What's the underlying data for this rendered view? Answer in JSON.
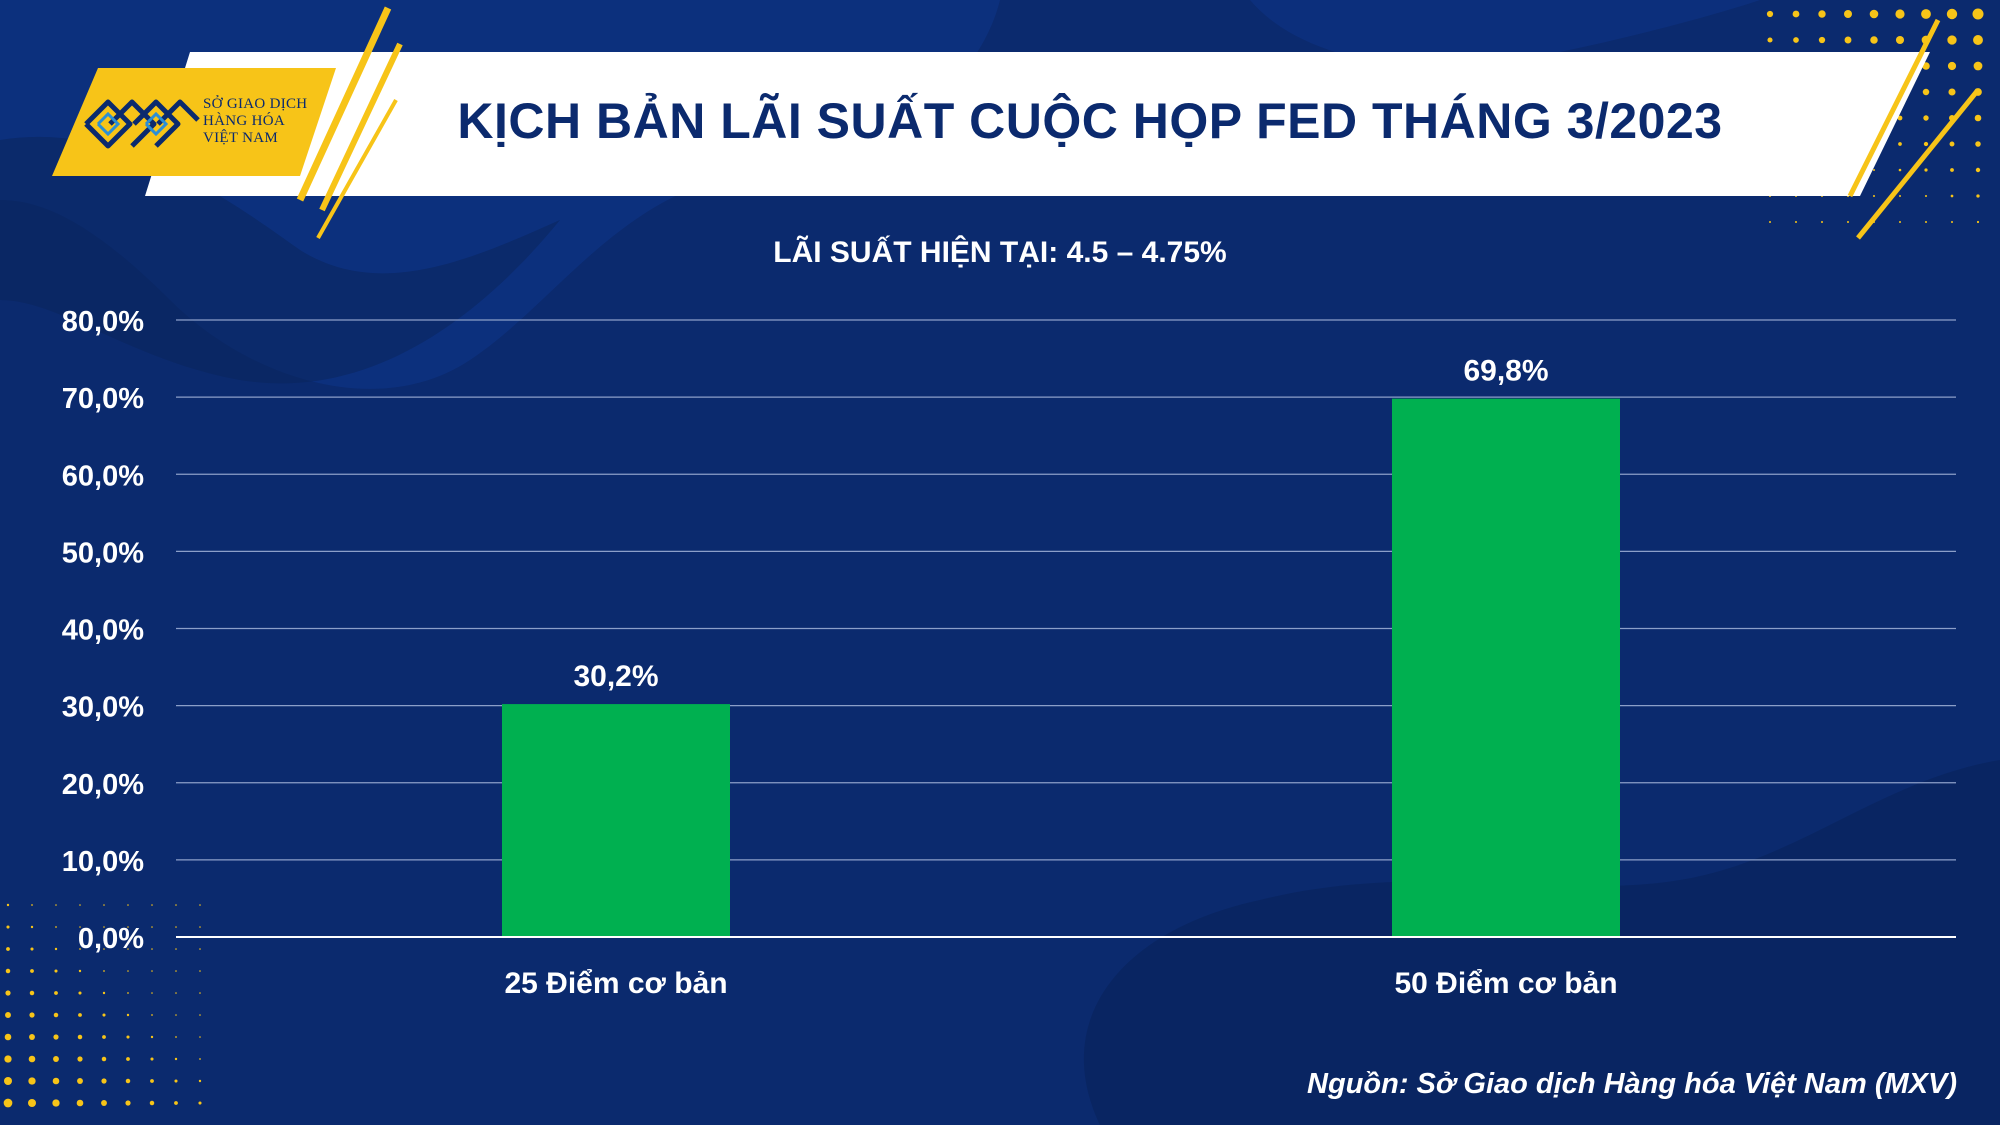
{
  "header": {
    "logo_lines": [
      "SỞ GIAO DỊCH",
      "HÀNG HÓA",
      "VIỆT NAM"
    ],
    "title": "KỊCH BẢN LÃI SUẤT CUỘC HỌP FED THÁNG 3/2023"
  },
  "chart_data": {
    "type": "bar",
    "subtitle": "LÃI SUẤT HIỆN TẠI: 4.5 – 4.75%",
    "categories": [
      "25 Điểm cơ bản",
      "50 Điểm cơ bản"
    ],
    "values": [
      30.2,
      69.8
    ],
    "data_labels": [
      "30,2%",
      "69,8%"
    ],
    "yticks": [
      "0,0%",
      "10,0%",
      "20,0%",
      "30,0%",
      "40,0%",
      "50,0%",
      "60,0%",
      "70,0%",
      "80,0%"
    ],
    "ylim": [
      0,
      80
    ],
    "grid": true,
    "bar_color": "#00b050",
    "xlabel": "",
    "ylabel": ""
  },
  "footer": {
    "source": "Nguồn: Sở Giao dịch Hàng hóa Việt Nam (MXV)"
  },
  "colors": {
    "background": "#0b2a6e",
    "accent_gold": "#f7c418",
    "text_navy": "#0b2a6e"
  }
}
